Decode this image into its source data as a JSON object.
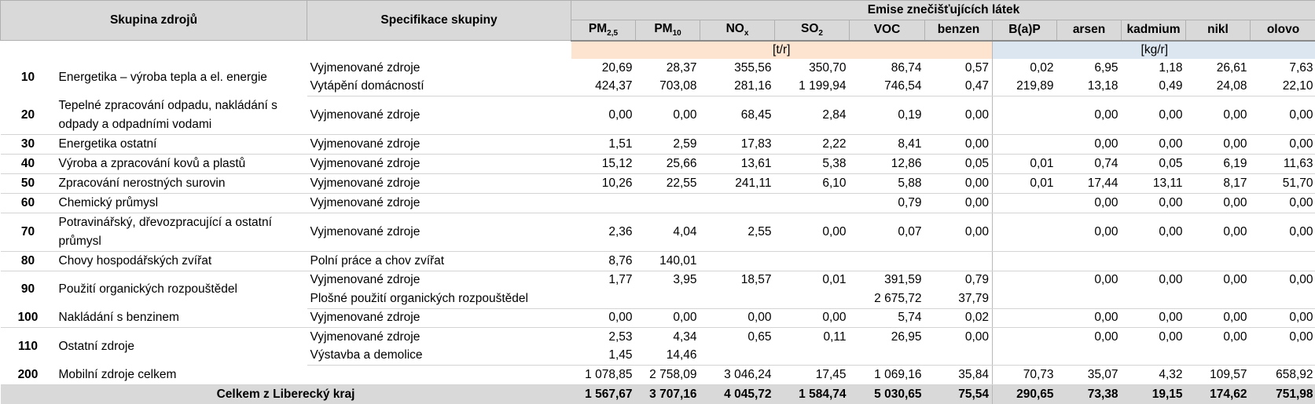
{
  "header": {
    "col_group": "Skupina zdrojů",
    "col_spec": "Specifikace skupiny",
    "emissions_title": "Emise znečišťujících látek",
    "pollutants": [
      {
        "base": "PM",
        "sub": "2,5"
      },
      {
        "base": "PM",
        "sub": "10"
      },
      {
        "base": "NO",
        "sub": "x"
      },
      {
        "base": "SO",
        "sub": "2"
      },
      {
        "base": "VOC",
        "sub": ""
      },
      {
        "base": "benzen",
        "sub": ""
      },
      {
        "base": "B(a)P",
        "sub": ""
      },
      {
        "base": "arsen",
        "sub": ""
      },
      {
        "base": "kadmium",
        "sub": ""
      },
      {
        "base": "nikl",
        "sub": ""
      },
      {
        "base": "olovo",
        "sub": ""
      }
    ],
    "unit_t": "[t/r]",
    "unit_kg": "[kg/r]"
  },
  "groups": [
    {
      "code": "10",
      "name": "Energetika – výroba tepla a el. energie",
      "rows": [
        {
          "spec": "Vyjmenované zdroje",
          "values": [
            "20,69",
            "28,37",
            "355,56",
            "350,70",
            "86,74",
            "0,57",
            "0,02",
            "6,95",
            "1,18",
            "26,61",
            "7,63"
          ]
        },
        {
          "spec": "Vytápění domácností",
          "values": [
            "424,37",
            "703,08",
            "281,16",
            "1 199,94",
            "746,54",
            "0,47",
            "219,89",
            "13,18",
            "0,49",
            "24,08",
            "22,10"
          ]
        }
      ]
    },
    {
      "code": "20",
      "name": "Tepelné zpracování odpadu, nakládání s odpady a odpadními vodami",
      "rows": [
        {
          "spec": "Vyjmenované zdroje",
          "values": [
            "0,00",
            "0,00",
            "68,45",
            "2,84",
            "0,19",
            "0,00",
            "",
            "0,00",
            "0,00",
            "0,00",
            "0,00"
          ]
        }
      ]
    },
    {
      "code": "30",
      "name": "Energetika ostatní",
      "rows": [
        {
          "spec": "Vyjmenované zdroje",
          "values": [
            "1,51",
            "2,59",
            "17,83",
            "2,22",
            "8,41",
            "0,00",
            "",
            "0,00",
            "0,00",
            "0,00",
            "0,00"
          ]
        }
      ]
    },
    {
      "code": "40",
      "name": "Výroba a zpracování kovů a plastů",
      "rows": [
        {
          "spec": "Vyjmenované zdroje",
          "values": [
            "15,12",
            "25,66",
            "13,61",
            "5,38",
            "12,86",
            "0,05",
            "0,01",
            "0,74",
            "0,05",
            "6,19",
            "11,63"
          ]
        }
      ]
    },
    {
      "code": "50",
      "name": "Zpracování nerostných surovin",
      "rows": [
        {
          "spec": "Vyjmenované zdroje",
          "values": [
            "10,26",
            "22,55",
            "241,11",
            "6,10",
            "5,88",
            "0,00",
            "0,01",
            "17,44",
            "13,11",
            "8,17",
            "51,70"
          ]
        }
      ]
    },
    {
      "code": "60",
      "name": "Chemický průmysl",
      "rows": [
        {
          "spec": "Vyjmenované zdroje",
          "values": [
            "",
            "",
            "",
            "",
            "0,79",
            "0,00",
            "",
            "0,00",
            "0,00",
            "0,00",
            "0,00"
          ]
        }
      ]
    },
    {
      "code": "70",
      "name": "Potravinářský, dřevozpracující a ostatní průmysl",
      "rows": [
        {
          "spec": "Vyjmenované zdroje",
          "values": [
            "2,36",
            "4,04",
            "2,55",
            "0,00",
            "0,07",
            "0,00",
            "",
            "0,00",
            "0,00",
            "0,00",
            "0,00"
          ]
        }
      ]
    },
    {
      "code": "80",
      "name": "Chovy hospodářských zvířat",
      "rows": [
        {
          "spec": "Polní práce a chov zvířat",
          "values": [
            "8,76",
            "140,01",
            "",
            "",
            "",
            "",
            "",
            "",
            "",
            "",
            ""
          ]
        }
      ]
    },
    {
      "code": "90",
      "name": "Použití organických rozpouštědel",
      "rows": [
        {
          "spec": "Vyjmenované zdroje",
          "values": [
            "1,77",
            "3,95",
            "18,57",
            "0,01",
            "391,59",
            "0,79",
            "",
            "0,00",
            "0,00",
            "0,00",
            "0,00"
          ]
        },
        {
          "spec": "Plošné použití organických rozpouštědel",
          "values": [
            "",
            "",
            "",
            "",
            "2 675,72",
            "37,79",
            "",
            "",
            "",
            "",
            ""
          ]
        }
      ]
    },
    {
      "code": "100",
      "name": "Nakládání s benzinem",
      "rows": [
        {
          "spec": "Vyjmenované zdroje",
          "values": [
            "0,00",
            "0,00",
            "0,00",
            "0,00",
            "5,74",
            "0,02",
            "",
            "0,00",
            "0,00",
            "0,00",
            "0,00"
          ]
        }
      ]
    },
    {
      "code": "110",
      "name": "Ostatní zdroje",
      "rows": [
        {
          "spec": "Vyjmenované zdroje",
          "values": [
            "2,53",
            "4,34",
            "0,65",
            "0,11",
            "26,95",
            "0,00",
            "",
            "0,00",
            "0,00",
            "0,00",
            "0,00"
          ]
        },
        {
          "spec": "Výstavba a demolice",
          "values": [
            "1,45",
            "14,46",
            "",
            "",
            "",
            "",
            "",
            "",
            "",
            "",
            ""
          ]
        }
      ]
    },
    {
      "code": "200",
      "name": "Mobilní zdroje celkem",
      "rows": [
        {
          "spec": "",
          "values": [
            "1 078,85",
            "2 758,09",
            "3 046,24",
            "17,45",
            "1 069,16",
            "35,84",
            "70,73",
            "35,07",
            "4,32",
            "109,57",
            "658,92"
          ]
        }
      ]
    }
  ],
  "total": {
    "label": "Celkem z Liberecký kraj",
    "values": [
      "1 567,67",
      "3 707,16",
      "4 045,72",
      "1 584,74",
      "5 030,65",
      "75,54",
      "290,65",
      "73,38",
      "19,15",
      "174,62",
      "751,98"
    ]
  },
  "colors": {
    "header_bg": "#d9d9d9",
    "unit_t_bg": "#fde4d0",
    "unit_kg_bg": "#dce6f1"
  }
}
